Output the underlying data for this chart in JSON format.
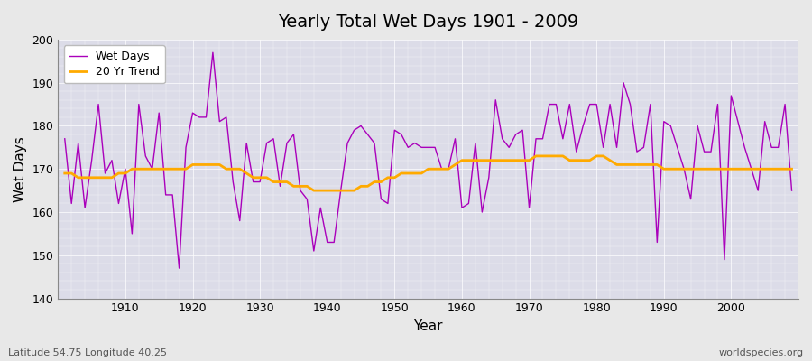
{
  "title": "Yearly Total Wet Days 1901 - 2009",
  "xlabel": "Year",
  "ylabel": "Wet Days",
  "lat_lon_label": "Latitude 54.75 Longitude 40.25",
  "watermark": "worldspecies.org",
  "years": [
    1901,
    1902,
    1903,
    1904,
    1905,
    1906,
    1907,
    1908,
    1909,
    1910,
    1911,
    1912,
    1913,
    1914,
    1915,
    1916,
    1917,
    1918,
    1919,
    1920,
    1921,
    1922,
    1923,
    1924,
    1925,
    1926,
    1927,
    1928,
    1929,
    1930,
    1931,
    1932,
    1933,
    1934,
    1935,
    1936,
    1937,
    1938,
    1939,
    1940,
    1941,
    1942,
    1943,
    1944,
    1945,
    1946,
    1947,
    1948,
    1949,
    1950,
    1951,
    1952,
    1953,
    1954,
    1955,
    1956,
    1957,
    1958,
    1959,
    1960,
    1961,
    1962,
    1963,
    1964,
    1965,
    1966,
    1967,
    1968,
    1969,
    1970,
    1971,
    1972,
    1973,
    1974,
    1975,
    1976,
    1977,
    1978,
    1979,
    1980,
    1981,
    1982,
    1983,
    1984,
    1985,
    1986,
    1987,
    1988,
    1989,
    1990,
    1991,
    1992,
    1993,
    1994,
    1995,
    1996,
    1997,
    1998,
    1999,
    2000,
    2001,
    2002,
    2003,
    2004,
    2005,
    2006,
    2007,
    2008,
    2009
  ],
  "wet_days": [
    177,
    162,
    176,
    161,
    172,
    185,
    169,
    172,
    162,
    170,
    155,
    185,
    173,
    170,
    183,
    164,
    164,
    147,
    175,
    183,
    182,
    182,
    197,
    181,
    182,
    167,
    158,
    176,
    167,
    167,
    176,
    177,
    166,
    176,
    178,
    165,
    163,
    151,
    161,
    153,
    153,
    165,
    176,
    179,
    180,
    178,
    176,
    163,
    162,
    179,
    178,
    175,
    176,
    175,
    175,
    175,
    170,
    170,
    177,
    161,
    162,
    176,
    160,
    168,
    186,
    177,
    175,
    178,
    179,
    161,
    177,
    177,
    185,
    185,
    177,
    185,
    174,
    180,
    185,
    185,
    175,
    185,
    175,
    190,
    185,
    174,
    175,
    185,
    153,
    181,
    180,
    175,
    170,
    163,
    180,
    174,
    174,
    185,
    149,
    187,
    181,
    175,
    170,
    165,
    181,
    175,
    175,
    185,
    165
  ],
  "trend_values": [
    169,
    169,
    168,
    168,
    168,
    168,
    168,
    168,
    169,
    169,
    170,
    170,
    170,
    170,
    170,
    170,
    170,
    170,
    170,
    171,
    171,
    171,
    171,
    171,
    170,
    170,
    170,
    169,
    168,
    168,
    168,
    167,
    167,
    167,
    166,
    166,
    166,
    165,
    165,
    165,
    165,
    165,
    165,
    165,
    166,
    166,
    167,
    167,
    168,
    168,
    169,
    169,
    169,
    169,
    170,
    170,
    170,
    170,
    171,
    172,
    172,
    172,
    172,
    172,
    172,
    172,
    172,
    172,
    172,
    172,
    173,
    173,
    173,
    173,
    173,
    172,
    172,
    172,
    172,
    173,
    173,
    172,
    171,
    171,
    171,
    171,
    171,
    171,
    171,
    170,
    170,
    170,
    170,
    170,
    170,
    170,
    170,
    170,
    170,
    170,
    170,
    170,
    170,
    170,
    170,
    170,
    170,
    170,
    170
  ],
  "wet_days_color": "#aa00bb",
  "trend_color": "#ffaa00",
  "bg_color": "#dcdce8",
  "fig_color": "#e8e8e8",
  "ylim": [
    140,
    200
  ],
  "yticks": [
    140,
    150,
    160,
    170,
    180,
    190,
    200
  ],
  "xlim": [
    1900,
    2010
  ],
  "xticks": [
    1910,
    1920,
    1930,
    1940,
    1950,
    1960,
    1970,
    1980,
    1990,
    2000
  ]
}
